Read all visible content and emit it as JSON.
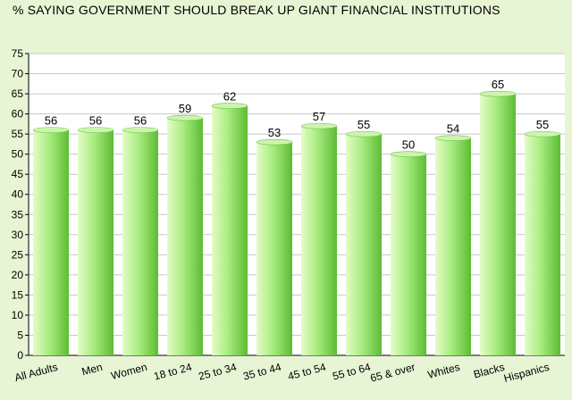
{
  "colors": {
    "background": "#e8f5d4",
    "plot_background": "#ffffff",
    "bar_light": "#e4fcc8",
    "bar_mid": "#a8ec80",
    "bar_dark": "#5cbc34",
    "grid": "#c8c8c8",
    "axis": "#000000"
  },
  "chart_data": {
    "type": "bar",
    "title": "% SAYING GOVERNMENT SHOULD BREAK UP GIANT FINANCIAL INSTITUTIONS",
    "xlabel": "",
    "ylabel": "",
    "categories": [
      "All Adults",
      "Men",
      "Women",
      "18 to 24",
      "25 to 34",
      "35 to 44",
      "45 to 54",
      "55 to 64",
      "65 & over",
      "Whites",
      "Blacks",
      "Hispanics"
    ],
    "values": [
      56,
      56,
      56,
      59,
      62,
      53,
      57,
      55,
      50,
      54,
      65,
      55
    ],
    "data_labels": [
      "56",
      "56",
      "56",
      "59",
      "62",
      "53",
      "57",
      "55",
      "50",
      "54",
      "65",
      "55"
    ],
    "ylim": [
      0,
      75
    ],
    "yticks": [
      "0",
      "5",
      "10",
      "15",
      "20",
      "25",
      "30",
      "35",
      "40",
      "45",
      "50",
      "55",
      "60",
      "65",
      "70",
      "75"
    ],
    "grid": true,
    "legend": false
  }
}
